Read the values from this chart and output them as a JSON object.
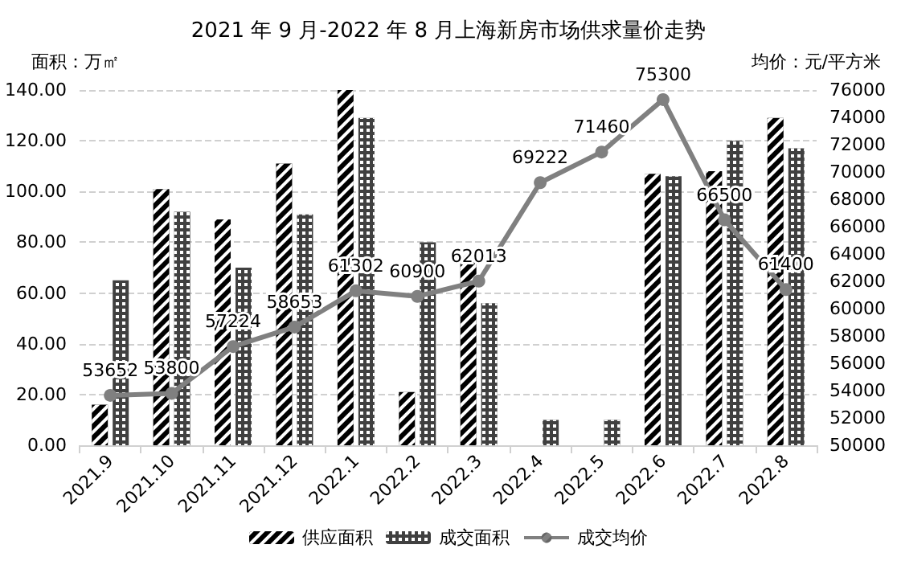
{
  "chart_data": {
    "type": "bar",
    "title": "2021 年 9 月-2022 年 8 月上海新房市场供求量价走势",
    "ylabel": "面积：万㎡",
    "y2label": "均价：元/平方米",
    "categories": [
      "2021.9",
      "2021.10",
      "2021.11",
      "2021.12",
      "2022.1",
      "2022.2",
      "2022.3",
      "2022.4",
      "2022.5",
      "2022.6",
      "2022.7",
      "2022.8"
    ],
    "series": [
      {
        "name": "供应面积",
        "color": "#000000",
        "values": [
          16,
          101,
          89,
          111,
          140,
          21,
          76,
          0,
          0,
          107,
          108,
          129
        ]
      },
      {
        "name": "成交面积",
        "color": "#404040",
        "values": [
          65,
          92,
          70,
          91,
          129,
          80,
          56,
          10,
          10,
          106,
          120,
          117
        ]
      },
      {
        "name": "成交均价",
        "type": "line",
        "axis": "y2",
        "color": "#808080",
        "marker": "circle",
        "values": [
          53652,
          53800,
          57224,
          58653,
          61302,
          60900,
          62013,
          69222,
          71460,
          75300,
          66500,
          61400
        ],
        "value_labels": [
          "53652",
          "53800",
          "57224",
          "58653",
          "61302",
          "60900",
          "62013",
          "69222",
          "71460",
          "75300",
          "66500",
          "61400"
        ]
      }
    ],
    "ylim": [
      0,
      140
    ],
    "yticks": [
      {
        "value": 0,
        "label": "0.00"
      },
      {
        "value": 20,
        "label": "20.00"
      },
      {
        "value": 40,
        "label": "40.00"
      },
      {
        "value": 60,
        "label": "60.00"
      },
      {
        "value": 80,
        "label": "80.00"
      },
      {
        "value": 100,
        "label": "100.00"
      },
      {
        "value": 120,
        "label": "120.00"
      },
      {
        "value": 140,
        "label": "140.00"
      }
    ],
    "y2lim": [
      50000,
      76000
    ],
    "y2ticks": [
      50000,
      52000,
      54000,
      56000,
      58000,
      60000,
      62000,
      64000,
      66000,
      68000,
      70000,
      72000,
      74000,
      76000
    ],
    "grid": "y",
    "legend": "bottom"
  }
}
